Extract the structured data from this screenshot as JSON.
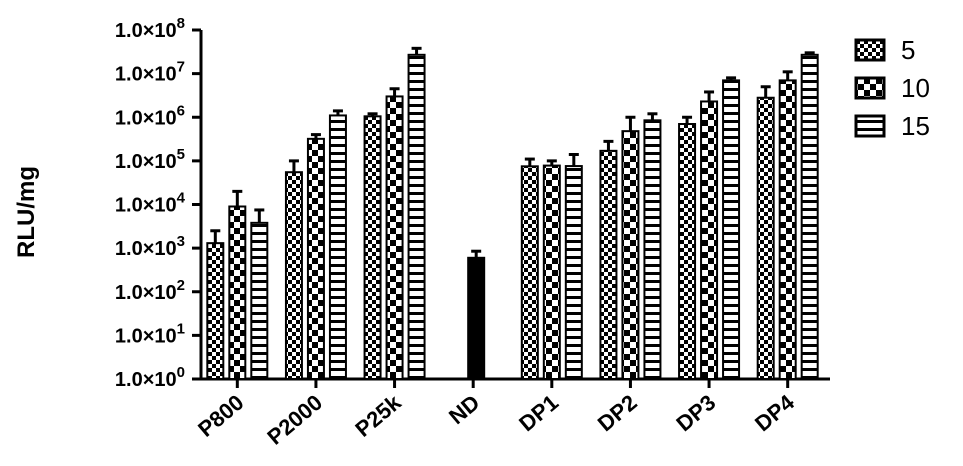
{
  "chart_data": {
    "type": "bar",
    "scale": "log",
    "ylabel": "RLU/mg",
    "xlabel": "",
    "ylim": [
      1,
      100000000
    ],
    "y_ticks": [
      {
        "value": 1,
        "mant": "1.0×10",
        "exp": "0"
      },
      {
        "value": 10,
        "mant": "1.0×10",
        "exp": "1"
      },
      {
        "value": 100,
        "mant": "1.0×10",
        "exp": "2"
      },
      {
        "value": 1000,
        "mant": "1.0×10",
        "exp": "3"
      },
      {
        "value": 10000,
        "mant": "1.0×10",
        "exp": "4"
      },
      {
        "value": 100000,
        "mant": "1.0×10",
        "exp": "5"
      },
      {
        "value": 1000000,
        "mant": "1.0×10",
        "exp": "6"
      },
      {
        "value": 10000000,
        "mant": "1.0×10",
        "exp": "7"
      },
      {
        "value": 100000000,
        "mant": "1.0×10",
        "exp": "8"
      }
    ],
    "categories": [
      "P800",
      "P2000",
      "P25k",
      "ND",
      "DP1",
      "DP2",
      "DP3",
      "DP4"
    ],
    "series": [
      {
        "name": "5",
        "pattern": "checker-fine",
        "values": [
          1300,
          55000,
          1050000,
          null,
          75000,
          170000,
          700000,
          2800000
        ],
        "errors": [
          2500,
          100000,
          1200000,
          null,
          110000,
          280000,
          1000000,
          5000000
        ]
      },
      {
        "name": "10",
        "pattern": "checker-coarse",
        "values": [
          9000,
          320000,
          3000000,
          null,
          78000,
          480000,
          2300000,
          7000000
        ],
        "errors": [
          20000,
          400000,
          4500000,
          null,
          100000,
          1000000,
          3800000,
          11000000
        ]
      },
      {
        "name": "15",
        "pattern": "horizontal-stripes",
        "values": [
          3800,
          1100000,
          27000000,
          null,
          76000,
          850000,
          7000000,
          27000000
        ],
        "errors": [
          7500,
          1400000,
          38000000,
          null,
          140000,
          1200000,
          8000000,
          30000000
        ]
      }
    ],
    "single_bars": [
      {
        "category": "ND",
        "value": 600,
        "error": 850,
        "color": "#000000"
      }
    ],
    "legend": {
      "position": "top-right",
      "entries": [
        "5",
        "10",
        "15"
      ]
    },
    "grid": false
  }
}
